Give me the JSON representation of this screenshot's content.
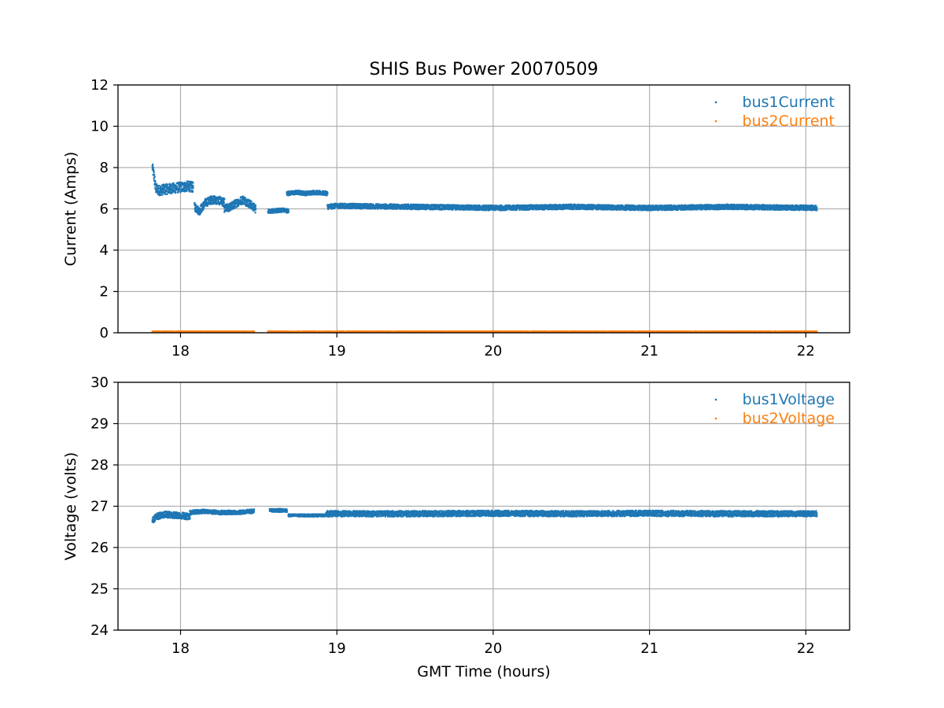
{
  "figure": {
    "title": "SHIS Bus Power 20070509"
  },
  "colors": {
    "series1": "#1f77b4",
    "series2": "#ff7f0e",
    "grid": "#b0b0b0",
    "axis": "#000000"
  },
  "chart_data": [
    {
      "type": "scatter",
      "title": "SHIS Bus Power 20070509",
      "xlabel": "",
      "ylabel": "Current (Amps)",
      "xlim": [
        17.6,
        22.28
      ],
      "ylim": [
        0,
        12
      ],
      "xticks": [
        18,
        19,
        20,
        21,
        22
      ],
      "yticks": [
        0,
        2,
        4,
        6,
        8,
        10,
        12
      ],
      "grid": true,
      "legend": "top-right",
      "series": [
        {
          "name": "bus1Current",
          "color": "#1f77b4",
          "segments": [
            {
              "x": [
                17.82,
                17.83,
                17.84,
                17.86,
                17.9,
                17.95,
                18.0,
                18.05,
                18.08
              ],
              "y": [
                8.0,
                7.6,
                7.0,
                6.9,
                6.95,
                7.0,
                7.05,
                7.1,
                7.05
              ],
              "spread": 0.25
            },
            {
              "x": [
                18.09,
                18.12,
                18.16,
                18.2,
                18.25,
                18.28
              ],
              "y": [
                6.1,
                5.9,
                6.3,
                6.45,
                6.4,
                6.3
              ],
              "spread": 0.2
            },
            {
              "x": [
                18.28,
                18.32,
                18.36,
                18.4,
                18.45,
                18.48
              ],
              "y": [
                6.0,
                6.1,
                6.3,
                6.45,
                6.2,
                6.0
              ],
              "spread": 0.2
            },
            {
              "x": [
                18.56,
                18.6,
                18.65,
                18.69
              ],
              "y": [
                5.9,
                5.9,
                5.95,
                5.9
              ],
              "spread": 0.1
            },
            {
              "x": [
                18.68,
                18.75,
                18.8,
                18.85,
                18.94
              ],
              "y": [
                6.75,
                6.8,
                6.75,
                6.8,
                6.75
              ],
              "spread": 0.1
            },
            {
              "x": [
                18.94,
                19.0,
                19.5,
                20.0,
                20.5,
                21.0,
                21.5,
                22.07
              ],
              "y": [
                6.1,
                6.15,
                6.1,
                6.05,
                6.1,
                6.05,
                6.1,
                6.05
              ],
              "spread": 0.12
            }
          ]
        },
        {
          "name": "bus2Current",
          "color": "#ff7f0e",
          "segments": [
            {
              "x": [
                17.82,
                18.47
              ],
              "y": [
                0.05,
                0.05
              ],
              "spread": 0.02
            },
            {
              "x": [
                18.56,
                22.07
              ],
              "y": [
                0.05,
                0.05
              ],
              "spread": 0.02
            }
          ]
        }
      ]
    },
    {
      "type": "scatter",
      "xlabel": "GMT Time (hours)",
      "ylabel": "Voltage (volts)",
      "xlim": [
        17.6,
        22.28
      ],
      "ylim": [
        24,
        30
      ],
      "xticks": [
        18,
        19,
        20,
        21,
        22
      ],
      "yticks": [
        24,
        25,
        26,
        27,
        28,
        29,
        30
      ],
      "grid": true,
      "legend": "top-right",
      "series": [
        {
          "name": "bus1Voltage",
          "color": "#1f77b4",
          "segments": [
            {
              "x": [
                17.82,
                17.84,
                17.9,
                18.0,
                18.06
              ],
              "y": [
                26.65,
                26.75,
                26.8,
                26.78,
                26.75
              ],
              "spread": 0.08
            },
            {
              "x": [
                18.06,
                18.15,
                18.25,
                18.35,
                18.47
              ],
              "y": [
                26.85,
                26.88,
                26.85,
                26.85,
                26.88
              ],
              "spread": 0.05
            },
            {
              "x": [
                18.57,
                18.62,
                18.68
              ],
              "y": [
                26.9,
                26.9,
                26.9
              ],
              "spread": 0.04
            },
            {
              "x": [
                18.69,
                18.8,
                18.92
              ],
              "y": [
                26.78,
                26.78,
                26.78
              ],
              "spread": 0.03
            },
            {
              "x": [
                18.93,
                19.5,
                20.0,
                20.5,
                21.0,
                21.5,
                22.07
              ],
              "y": [
                26.82,
                26.82,
                26.83,
                26.82,
                26.83,
                26.82,
                26.82
              ],
              "spread": 0.07
            }
          ]
        },
        {
          "name": "bus2Voltage",
          "color": "#ff7f0e",
          "segments": []
        }
      ]
    }
  ]
}
